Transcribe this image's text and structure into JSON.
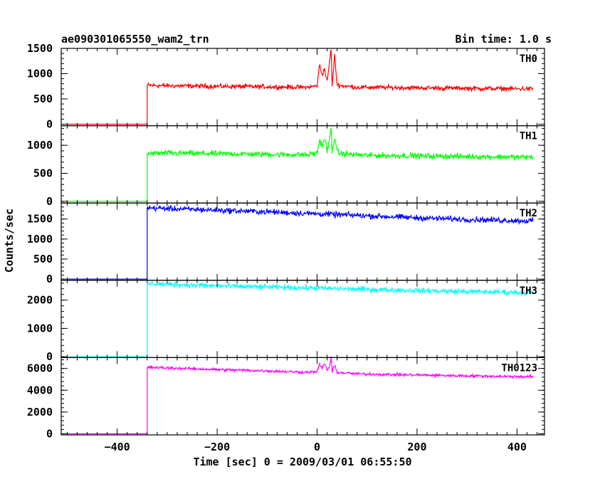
{
  "chart_data": {
    "type": "line",
    "title": "ae090301065550_wam2_trn",
    "subtitle": "Bin time: 1.0 s",
    "xlabel": "Time [sec] 0 = 2009/03/01 06:55:50",
    "ylabel": "Counts/sec",
    "xlim": [
      -512,
      455
    ],
    "xticks": [
      -400,
      -200,
      0,
      200,
      400
    ],
    "grid": false,
    "panels": [
      {
        "name": "TH0",
        "color": "#ff0000",
        "ylim": [
          -30,
          1500
        ],
        "yticks": [
          0,
          500,
          1000,
          1500
        ],
        "x": [
          -500,
          -340,
          -340,
          -300,
          -200,
          -100,
          -20,
          0,
          5,
          10,
          15,
          20,
          25,
          28,
          30,
          35,
          40,
          50,
          80,
          100,
          200,
          300,
          400,
          432
        ],
        "y": [
          0,
          0,
          770,
          760,
          750,
          740,
          730,
          760,
          1180,
          980,
          1100,
          830,
          1250,
          1500,
          760,
          1350,
          780,
          760,
          730,
          730,
          720,
          710,
          700,
          700
        ],
        "noise": 45
      },
      {
        "name": "TH1",
        "color": "#00ff00",
        "ylim": [
          -30,
          1350
        ],
        "yticks": [
          0,
          500,
          1000
        ],
        "x": [
          -500,
          -340,
          -340,
          -300,
          -200,
          -100,
          -20,
          0,
          5,
          10,
          15,
          20,
          25,
          28,
          30,
          35,
          40,
          50,
          80,
          100,
          200,
          300,
          400,
          432
        ],
        "y": [
          0,
          0,
          850,
          860,
          850,
          840,
          830,
          860,
          1100,
          980,
          1130,
          900,
          1100,
          1330,
          870,
          1150,
          880,
          850,
          830,
          820,
          810,
          800,
          790,
          790
        ],
        "noise": 50
      },
      {
        "name": "TH2",
        "color": "#0000ff",
        "ylim": [
          -30,
          1900
        ],
        "yticks": [
          0,
          500,
          1000,
          1500
        ],
        "x": [
          -500,
          -340,
          -340,
          -300,
          -200,
          -100,
          0,
          100,
          200,
          300,
          400,
          432
        ],
        "y": [
          0,
          0,
          1780,
          1760,
          1720,
          1680,
          1630,
          1580,
          1530,
          1490,
          1460,
          1450
        ],
        "noise": 70
      },
      {
        "name": "TH3",
        "color": "#00ffff",
        "ylim": [
          -30,
          2700
        ],
        "yticks": [
          0,
          1000,
          2000
        ],
        "x": [
          -500,
          -340,
          -340,
          -300,
          -200,
          -100,
          0,
          100,
          200,
          300,
          400,
          432
        ],
        "y": [
          0,
          0,
          2580,
          2560,
          2500,
          2460,
          2420,
          2380,
          2340,
          2300,
          2270,
          2260
        ],
        "noise": 90
      },
      {
        "name": "TH0123",
        "color": "#ff00ff",
        "ylim": [
          -100,
          7000
        ],
        "yticks": [
          0,
          2000,
          4000,
          6000
        ],
        "x": [
          -500,
          -340,
          -340,
          -300,
          -200,
          -100,
          -20,
          0,
          5,
          10,
          15,
          20,
          25,
          28,
          30,
          35,
          40,
          50,
          80,
          100,
          200,
          300,
          400,
          432
        ],
        "y": [
          0,
          0,
          6100,
          6050,
          5900,
          5780,
          5650,
          5700,
          6400,
          6000,
          6500,
          5800,
          6200,
          7000,
          5700,
          6300,
          5650,
          5600,
          5500,
          5480,
          5400,
          5320,
          5250,
          5250
        ],
        "noise": 130
      }
    ]
  }
}
